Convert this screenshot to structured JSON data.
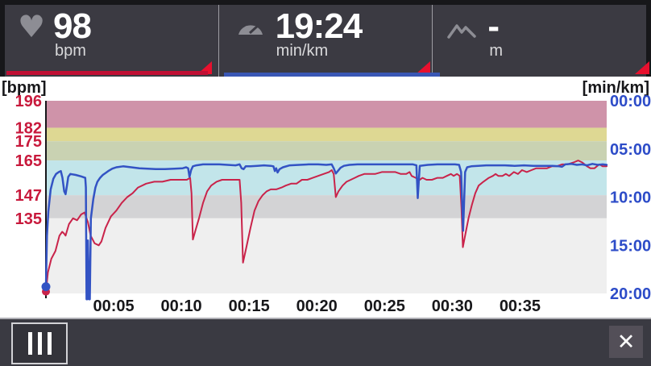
{
  "header": {
    "panels": [
      {
        "id": "heart-rate",
        "icon": "heart-icon",
        "value": "98",
        "unit": "bpm",
        "accent": "#c00f34"
      },
      {
        "id": "pace",
        "icon": "gauge-icon",
        "value": "19:24",
        "unit": "min/km",
        "accent": "#3a57b5"
      },
      {
        "id": "altitude",
        "icon": "mountains-icon",
        "value": "-",
        "unit": "m",
        "accent": null
      }
    ],
    "overflow_marker_color": "#e8102e"
  },
  "bottom_bar": {
    "mode_button_icon": "chart-mode-bars-icon",
    "close_icon": "✕"
  },
  "chart_data": {
    "type": "line",
    "grid": false,
    "legend": "none",
    "x_axis": {
      "ticks": [
        "00:05",
        "00:10",
        "00:15",
        "00:20",
        "00:25",
        "00:30",
        "00:35"
      ],
      "tick_minutes": [
        5,
        10,
        15,
        20,
        25,
        30,
        35
      ],
      "range_minutes": [
        0,
        41.4
      ],
      "color": "#17171a"
    },
    "left_axis": {
      "label": "[bpm]",
      "color": "#c8193c",
      "ticks": [
        196,
        182,
        175,
        165,
        147,
        135
      ],
      "range": [
        96,
        196
      ]
    },
    "right_axis": {
      "label": "[min/km]",
      "color": "#2d4cc8",
      "ticks": [
        "00:00",
        "05:00",
        "10:00",
        "15:00",
        "20:00"
      ],
      "tick_values": [
        0,
        5,
        10,
        15,
        20
      ],
      "range": [
        0,
        20
      ]
    },
    "zones": [
      {
        "from": 182,
        "to": 196,
        "color": "#cf93a9"
      },
      {
        "from": 175,
        "to": 182,
        "color": "#ded893"
      },
      {
        "from": 165,
        "to": 175,
        "color": "#c9d2b2"
      },
      {
        "from": 147,
        "to": 165,
        "color": "#c2e5ea"
      },
      {
        "from": 135,
        "to": 147,
        "color": "#d3d3d5"
      },
      {
        "from": 96,
        "to": 135,
        "color": "#efefef"
      }
    ],
    "series": [
      {
        "name": "heart-rate",
        "axis": "left",
        "color": "#c9234a",
        "width": 2,
        "marker_r": 5,
        "points": [
          [
            0,
            97
          ],
          [
            0.15,
            107
          ],
          [
            0.4,
            114
          ],
          [
            0.7,
            118
          ],
          [
            1.0,
            126
          ],
          [
            1.2,
            128
          ],
          [
            1.35,
            127
          ],
          [
            1.45,
            126
          ],
          [
            1.7,
            132
          ],
          [
            2.0,
            135
          ],
          [
            2.3,
            134
          ],
          [
            2.6,
            137
          ],
          [
            2.85,
            138
          ],
          [
            3.1,
            133
          ],
          [
            3.3,
            126
          ],
          [
            3.6,
            122
          ],
          [
            3.9,
            121
          ],
          [
            4.1,
            123
          ],
          [
            4.4,
            130
          ],
          [
            4.8,
            136
          ],
          [
            5.2,
            139
          ],
          [
            5.6,
            143
          ],
          [
            6.0,
            146
          ],
          [
            6.4,
            148
          ],
          [
            6.8,
            151
          ],
          [
            7.4,
            153
          ],
          [
            8.0,
            154
          ],
          [
            8.6,
            154
          ],
          [
            9.2,
            155
          ],
          [
            9.9,
            155
          ],
          [
            10.4,
            155
          ],
          [
            10.65,
            156
          ],
          [
            10.75,
            148
          ],
          [
            10.85,
            124
          ],
          [
            11.05,
            129
          ],
          [
            11.3,
            135
          ],
          [
            11.6,
            143
          ],
          [
            11.9,
            149
          ],
          [
            12.2,
            152
          ],
          [
            12.6,
            154
          ],
          [
            13.0,
            155
          ],
          [
            13.5,
            155
          ],
          [
            14.0,
            155
          ],
          [
            14.3,
            155
          ],
          [
            14.42,
            143
          ],
          [
            14.55,
            112
          ],
          [
            14.8,
            120
          ],
          [
            15.1,
            130
          ],
          [
            15.4,
            139
          ],
          [
            15.7,
            144
          ],
          [
            16.0,
            147
          ],
          [
            16.3,
            149
          ],
          [
            16.6,
            150
          ],
          [
            17.0,
            150
          ],
          [
            17.4,
            151
          ],
          [
            17.7,
            152
          ],
          [
            18.1,
            153
          ],
          [
            18.5,
            153
          ],
          [
            18.9,
            155
          ],
          [
            19.3,
            155
          ],
          [
            19.7,
            156
          ],
          [
            20.1,
            157
          ],
          [
            20.5,
            158
          ],
          [
            20.9,
            159
          ],
          [
            21.1,
            160
          ],
          [
            21.25,
            158
          ],
          [
            21.4,
            146
          ],
          [
            21.6,
            149
          ],
          [
            21.9,
            152
          ],
          [
            22.2,
            154
          ],
          [
            22.5,
            155
          ],
          [
            22.8,
            156
          ],
          [
            23.1,
            157
          ],
          [
            23.5,
            158
          ],
          [
            23.9,
            158
          ],
          [
            24.3,
            158
          ],
          [
            24.8,
            159
          ],
          [
            25.3,
            159
          ],
          [
            25.8,
            159
          ],
          [
            26.2,
            158
          ],
          [
            26.6,
            158
          ],
          [
            26.85,
            159
          ],
          [
            27.0,
            157
          ],
          [
            27.3,
            156
          ],
          [
            27.6,
            155
          ],
          [
            27.8,
            156
          ],
          [
            28.1,
            155
          ],
          [
            28.5,
            155
          ],
          [
            28.9,
            156
          ],
          [
            29.3,
            156
          ],
          [
            29.6,
            157
          ],
          [
            29.9,
            158
          ],
          [
            30.1,
            157
          ],
          [
            30.35,
            158
          ],
          [
            30.55,
            157
          ],
          [
            30.68,
            140
          ],
          [
            30.78,
            120
          ],
          [
            31.0,
            128
          ],
          [
            31.2,
            135
          ],
          [
            31.45,
            142
          ],
          [
            31.7,
            148
          ],
          [
            31.95,
            152
          ],
          [
            32.3,
            154
          ],
          [
            32.7,
            156
          ],
          [
            33.0,
            157
          ],
          [
            33.2,
            158
          ],
          [
            33.4,
            157
          ],
          [
            33.7,
            157
          ],
          [
            33.95,
            158
          ],
          [
            34.2,
            157
          ],
          [
            34.55,
            159
          ],
          [
            34.85,
            158
          ],
          [
            35.15,
            160
          ],
          [
            35.5,
            159
          ],
          [
            35.85,
            160
          ],
          [
            36.2,
            161
          ],
          [
            36.6,
            161
          ],
          [
            37.0,
            161
          ],
          [
            37.35,
            162
          ],
          [
            37.7,
            162
          ],
          [
            38.1,
            163
          ],
          [
            38.5,
            163
          ],
          [
            38.95,
            164
          ],
          [
            39.3,
            165
          ],
          [
            39.6,
            164
          ],
          [
            39.95,
            162
          ],
          [
            40.2,
            161
          ],
          [
            40.5,
            161
          ],
          [
            40.85,
            163
          ],
          [
            41.1,
            162
          ],
          [
            41.4,
            162
          ]
        ]
      },
      {
        "name": "pace",
        "axis": "right",
        "color": "#3353c4",
        "width": 2.5,
        "marker_r": 5.5,
        "points": [
          [
            0,
            19.3
          ],
          [
            0.08,
            14.0
          ],
          [
            0.18,
            11.5
          ],
          [
            0.35,
            9.2
          ],
          [
            0.55,
            8.1
          ],
          [
            0.75,
            7.6
          ],
          [
            0.95,
            7.4
          ],
          [
            1.1,
            7.3
          ],
          [
            1.22,
            8.0
          ],
          [
            1.35,
            9.4
          ],
          [
            1.45,
            9.7
          ],
          [
            1.55,
            8.8
          ],
          [
            1.65,
            7.9
          ],
          [
            1.8,
            7.6
          ],
          [
            2.2,
            7.7
          ],
          [
            2.6,
            7.85
          ],
          [
            2.9,
            8.0
          ],
          [
            2.95,
            9.0
          ],
          [
            3.0,
            20.6
          ],
          [
            3.05,
            20.6
          ],
          [
            3.1,
            14.5
          ],
          [
            3.18,
            20.6
          ],
          [
            3.24,
            20.6
          ],
          [
            3.32,
            12.2
          ],
          [
            3.5,
            10.2
          ],
          [
            3.65,
            9.0
          ],
          [
            3.8,
            8.4
          ],
          [
            4.0,
            8.0
          ],
          [
            4.2,
            7.7
          ],
          [
            4.4,
            7.5
          ],
          [
            4.6,
            7.3
          ],
          [
            4.9,
            7.05
          ],
          [
            5.2,
            6.9
          ],
          [
            5.7,
            6.8
          ],
          [
            6.3,
            6.9
          ],
          [
            6.9,
            7.0
          ],
          [
            7.5,
            7.05
          ],
          [
            8.1,
            7.1
          ],
          [
            8.8,
            7.1
          ],
          [
            9.5,
            7.05
          ],
          [
            10.1,
            7.0
          ],
          [
            10.35,
            6.9
          ],
          [
            10.5,
            7.0
          ],
          [
            10.6,
            7.9
          ],
          [
            10.72,
            7.2
          ],
          [
            10.85,
            6.8
          ],
          [
            11.1,
            6.7
          ],
          [
            11.6,
            6.6
          ],
          [
            12.2,
            6.6
          ],
          [
            12.8,
            6.6
          ],
          [
            13.4,
            6.65
          ],
          [
            14.0,
            6.7
          ],
          [
            14.3,
            6.6
          ],
          [
            14.45,
            7.0
          ],
          [
            14.6,
            7.1
          ],
          [
            14.75,
            6.8
          ],
          [
            15.1,
            6.8
          ],
          [
            15.6,
            6.75
          ],
          [
            16.1,
            6.7
          ],
          [
            16.6,
            6.75
          ],
          [
            16.8,
            6.8
          ],
          [
            16.9,
            7.3
          ],
          [
            17.0,
            7.0
          ],
          [
            17.1,
            7.45
          ],
          [
            17.25,
            7.1
          ],
          [
            17.5,
            6.9
          ],
          [
            18.0,
            6.7
          ],
          [
            18.7,
            6.65
          ],
          [
            19.4,
            6.6
          ],
          [
            20.1,
            6.6
          ],
          [
            20.7,
            6.65
          ],
          [
            21.1,
            6.6
          ],
          [
            21.25,
            7.0
          ],
          [
            21.4,
            7.55
          ],
          [
            21.55,
            7.3
          ],
          [
            21.75,
            6.95
          ],
          [
            22.0,
            6.75
          ],
          [
            22.4,
            6.65
          ],
          [
            23.0,
            6.6
          ],
          [
            23.7,
            6.6
          ],
          [
            24.4,
            6.6
          ],
          [
            25.1,
            6.6
          ],
          [
            25.8,
            6.6
          ],
          [
            26.5,
            6.6
          ],
          [
            27.1,
            6.6
          ],
          [
            27.35,
            6.7
          ],
          [
            27.45,
            10.1
          ],
          [
            27.6,
            6.75
          ],
          [
            28.2,
            6.65
          ],
          [
            28.9,
            6.6
          ],
          [
            29.6,
            6.6
          ],
          [
            30.2,
            6.6
          ],
          [
            30.5,
            6.65
          ],
          [
            30.65,
            7.4
          ],
          [
            30.8,
            13.5
          ],
          [
            30.95,
            7.4
          ],
          [
            31.1,
            6.9
          ],
          [
            31.4,
            6.8
          ],
          [
            31.9,
            6.75
          ],
          [
            32.5,
            6.7
          ],
          [
            33.2,
            6.7
          ],
          [
            33.9,
            6.7
          ],
          [
            34.6,
            6.75
          ],
          [
            35.3,
            6.7
          ],
          [
            36.0,
            6.75
          ],
          [
            36.7,
            6.75
          ],
          [
            37.4,
            6.75
          ],
          [
            37.9,
            6.8
          ],
          [
            38.1,
            6.85
          ],
          [
            38.35,
            6.6
          ],
          [
            38.8,
            6.55
          ],
          [
            39.2,
            6.65
          ],
          [
            39.6,
            6.6
          ],
          [
            39.95,
            6.7
          ],
          [
            40.35,
            6.55
          ],
          [
            40.75,
            6.65
          ],
          [
            41.1,
            6.6
          ],
          [
            41.4,
            6.65
          ]
        ]
      }
    ]
  }
}
